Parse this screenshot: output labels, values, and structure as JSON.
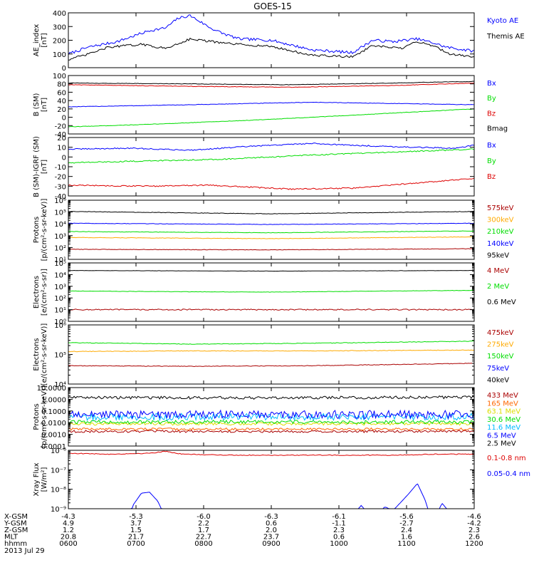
{
  "title": "GOES-15",
  "chart_data": [
    {
      "type": "line",
      "ylabel": "AE_index\n[nT]",
      "ylim": [
        0,
        400
      ],
      "scale": "linear",
      "ticks": [
        {
          "v": 0,
          "t": "0"
        },
        {
          "v": 100,
          "t": "100"
        },
        {
          "v": 200,
          "t": "200"
        },
        {
          "v": 300,
          "t": "300"
        },
        {
          "v": 400,
          "t": "400"
        }
      ],
      "series": [
        {
          "name": "Kyoto AE",
          "color": "#0000ff",
          "noise": 10,
          "x": [
            0,
            0.05,
            0.12,
            0.2,
            0.24,
            0.27,
            0.3,
            0.35,
            0.38,
            0.42,
            0.5,
            0.6,
            0.7,
            0.75,
            0.8,
            0.86,
            0.9,
            0.93,
            1.0
          ],
          "values": [
            100,
            150,
            190,
            270,
            290,
            360,
            380,
            290,
            250,
            210,
            200,
            130,
            110,
            200,
            190,
            210,
            180,
            150,
            120
          ]
        },
        {
          "name": "Themis AE",
          "color": "#000000",
          "noise": 8,
          "x": [
            0,
            0.04,
            0.1,
            0.18,
            0.24,
            0.3,
            0.38,
            0.42,
            0.5,
            0.6,
            0.7,
            0.75,
            0.82,
            0.86,
            0.9,
            0.94,
            1.0
          ],
          "values": [
            60,
            90,
            150,
            170,
            140,
            210,
            180,
            170,
            155,
            90,
            80,
            160,
            140,
            190,
            160,
            100,
            80
          ]
        }
      ]
    },
    {
      "type": "line",
      "ylabel": "B (SM)\n[nT]",
      "ylim": [
        -40,
        100
      ],
      "scale": "linear",
      "ticks": [
        {
          "v": -40,
          "t": "-40"
        },
        {
          "v": -20,
          "t": "-20"
        },
        {
          "v": 0,
          "t": "0"
        },
        {
          "v": 20,
          "t": "20"
        },
        {
          "v": 40,
          "t": "40"
        },
        {
          "v": 60,
          "t": "60"
        },
        {
          "v": 80,
          "t": "80"
        },
        {
          "v": 100,
          "t": "100"
        }
      ],
      "series": [
        {
          "name": "Bx",
          "color": "#0000ff",
          "noise": 0.6,
          "x": [
            0,
            0.3,
            0.6,
            1.0
          ],
          "values": [
            25,
            30,
            36,
            30
          ]
        },
        {
          "name": "By",
          "color": "#00dd00",
          "noise": 0.6,
          "x": [
            0,
            0.2,
            0.5,
            0.8,
            1.0
          ],
          "values": [
            -23,
            -17,
            -5,
            10,
            20
          ]
        },
        {
          "name": "Bz",
          "color": "#dd0000",
          "noise": 0.6,
          "x": [
            0,
            0.3,
            0.55,
            0.8,
            1.0
          ],
          "values": [
            78,
            74,
            72,
            76,
            82
          ]
        },
        {
          "name": "Bmag",
          "color": "#000000",
          "noise": 0.6,
          "x": [
            0,
            0.3,
            0.55,
            0.8,
            1.0
          ],
          "values": [
            82,
            80,
            78,
            82,
            86
          ]
        }
      ]
    },
    {
      "type": "line",
      "ylabel": "B (SM)-IGRF (SM)\n[nT]",
      "ylim": [
        -40,
        20
      ],
      "scale": "linear",
      "ticks": [
        {
          "v": -40,
          "t": "-40"
        },
        {
          "v": -30,
          "t": "-30"
        },
        {
          "v": -20,
          "t": "-20"
        },
        {
          "v": -10,
          "t": "-10"
        },
        {
          "v": 0,
          "t": "0"
        },
        {
          "v": 10,
          "t": "10"
        },
        {
          "v": 20,
          "t": "20"
        }
      ],
      "series": [
        {
          "name": "Bx",
          "color": "#0000ff",
          "noise": 0.6,
          "x": [
            0,
            0.15,
            0.3,
            0.45,
            0.6,
            0.7,
            0.85,
            0.95,
            1.0
          ],
          "values": [
            8,
            9,
            7,
            11,
            14,
            12,
            10,
            9,
            12
          ]
        },
        {
          "name": "By",
          "color": "#00dd00",
          "noise": 0.6,
          "x": [
            0,
            0.2,
            0.4,
            0.6,
            0.8,
            1.0
          ],
          "values": [
            -6,
            -4,
            -2,
            2,
            5,
            8
          ]
        },
        {
          "name": "Bz",
          "color": "#dd0000",
          "noise": 0.6,
          "x": [
            0,
            0.2,
            0.35,
            0.55,
            0.7,
            0.85,
            1.0
          ],
          "values": [
            -29,
            -30,
            -29,
            -33,
            -32,
            -27,
            -22
          ]
        }
      ]
    },
    {
      "type": "line",
      "ylabel": "Protons\n[p/(cm²-s-sr-keV)]",
      "ylim": [
        1,
        6
      ],
      "scale": "log",
      "ticks": [
        {
          "v": 1,
          "t": "10¹"
        },
        {
          "v": 2,
          "t": "10²"
        },
        {
          "v": 3,
          "t": "10³"
        },
        {
          "v": 4,
          "t": "10⁴"
        },
        {
          "v": 5,
          "t": "10⁵"
        },
        {
          "v": 6,
          "t": "10⁶"
        }
      ],
      "series": [
        {
          "name": "575keV",
          "color": "#aa0000",
          "noise": 0.02,
          "x": [
            0,
            0.5,
            1.0
          ],
          "values": [
            1.85,
            1.8,
            1.9
          ]
        },
        {
          "name": "300keV",
          "color": "#ffaa00",
          "noise": 0.02,
          "x": [
            0,
            0.5,
            1.0
          ],
          "values": [
            2.85,
            2.75,
            2.9
          ]
        },
        {
          "name": "210keV",
          "color": "#00dd00",
          "noise": 0.02,
          "x": [
            0,
            0.5,
            1.0
          ],
          "values": [
            3.35,
            3.25,
            3.4
          ]
        },
        {
          "name": "140keV",
          "color": "#0000ff",
          "noise": 0.02,
          "x": [
            0,
            0.5,
            1.0
          ],
          "values": [
            4.05,
            3.95,
            4.05
          ]
        },
        {
          "name": "95keV",
          "color": "#000000",
          "noise": 0.02,
          "x": [
            0,
            0.5,
            1.0
          ],
          "values": [
            5.05,
            4.85,
            5.05
          ]
        }
      ]
    },
    {
      "type": "line",
      "ylabel": "Electrons\n[e/(cm²-s-sr)]",
      "ylim": [
        0,
        5
      ],
      "scale": "log",
      "ticks": [
        {
          "v": 0,
          "t": "10⁰"
        },
        {
          "v": 1,
          "t": "10¹"
        },
        {
          "v": 2,
          "t": "10²"
        },
        {
          "v": 3,
          "t": "10³"
        },
        {
          "v": 4,
          "t": "10⁴"
        },
        {
          "v": 5,
          "t": "10⁵"
        }
      ],
      "series": [
        {
          "name": "4 MeV",
          "color": "#aa0000",
          "noise": 0.05,
          "x": [
            0,
            0.5,
            1.0
          ],
          "values": [
            1.0,
            1.0,
            1.0
          ]
        },
        {
          "name": "2 MeV",
          "color": "#00dd00",
          "noise": 0.015,
          "x": [
            0,
            0.2,
            0.5,
            0.8,
            1.0
          ],
          "values": [
            2.6,
            2.55,
            2.5,
            2.6,
            2.65
          ]
        },
        {
          "name": "0.6 MeV",
          "color": "#000000",
          "noise": 0.01,
          "x": [
            0,
            0.5,
            1.0
          ],
          "values": [
            4.35,
            4.3,
            4.35
          ]
        }
      ]
    },
    {
      "type": "line",
      "ylabel": "Electrons\n[e/(cm²-s-sr-keV)]",
      "ylim": [
        4,
        6
      ],
      "scale": "log",
      "ticks": [
        {
          "v": 4,
          "t": "10⁴"
        },
        {
          "v": 5,
          "t": "10⁵"
        },
        {
          "v": 6,
          "t": "10⁶"
        }
      ],
      "series": [
        {
          "name": "475keV",
          "color": "#aa0000",
          "noise": 0.01,
          "x": [
            0,
            0.3,
            0.6,
            1.0
          ],
          "values": [
            4.62,
            4.6,
            4.62,
            4.7
          ]
        },
        {
          "name": "275keV",
          "color": "#ffaa00",
          "noise": 0.01,
          "x": [
            0,
            0.3,
            0.6,
            1.0
          ],
          "values": [
            5.1,
            5.12,
            5.12,
            5.15
          ]
        },
        {
          "name": "150keV",
          "color": "#00dd00",
          "noise": 0.01,
          "x": [
            0,
            0.3,
            0.6,
            1.0
          ],
          "values": [
            5.4,
            5.35,
            5.38,
            5.45
          ]
        },
        {
          "name": "75keV",
          "color": "#0000ff",
          "noise": 0.01,
          "x": [
            0,
            0.5,
            1.0
          ],
          "values": [
            6.05,
            6.05,
            6.05
          ]
        },
        {
          "name": "40keV",
          "color": "#000000",
          "noise": 0.01,
          "x": [
            0,
            0.5,
            1.0
          ],
          "values": [
            6.1,
            6.1,
            6.1
          ]
        }
      ]
    },
    {
      "type": "line",
      "ylabel": "Protons\n[p/(cm²-s-sr-keV)]",
      "ylim": [
        -4,
        1
      ],
      "scale": "log",
      "ticks": [
        {
          "v": -4,
          "t": "0.0001"
        },
        {
          "v": -3,
          "t": "0.0010"
        },
        {
          "v": -2,
          "t": "0.0100"
        },
        {
          "v": -1,
          "t": "0.1000"
        },
        {
          "v": 0,
          "t": "1.0000"
        },
        {
          "v": 1,
          "t": "10.0000"
        }
      ],
      "series": [
        {
          "name": "433 MeV",
          "color": "#aa0000",
          "noise": 0.1,
          "x": [
            0,
            0.5,
            1.0
          ],
          "values": [
            -2.75,
            -2.75,
            -2.75
          ]
        },
        {
          "name": "165 MeV",
          "color": "#ff6600",
          "noise": 0.1,
          "x": [
            0,
            0.5,
            1.0
          ],
          "values": [
            -2.55,
            -2.55,
            -2.55
          ]
        },
        {
          "name": "63.1 MeV",
          "color": "#dddd00",
          "noise": 0.12,
          "x": [
            0,
            0.5,
            1.0
          ],
          "values": [
            -2.1,
            -2.1,
            -2.1
          ]
        },
        {
          "name": "30.6 MeV",
          "color": "#00dd00",
          "noise": 0.15,
          "x": [
            0,
            0.5,
            1.0
          ],
          "values": [
            -1.95,
            -1.95,
            -1.95
          ]
        },
        {
          "name": "11.6 MeV",
          "color": "#00bbff",
          "noise": 0.3,
          "x": [
            0,
            0.5,
            1.0
          ],
          "values": [
            -1.5,
            -1.5,
            -1.5
          ]
        },
        {
          "name": "6.5 MeV",
          "color": "#0000ff",
          "noise": 0.35,
          "x": [
            0,
            0.5,
            1.0
          ],
          "values": [
            -1.3,
            -1.3,
            -1.3
          ]
        },
        {
          "name": "2.5 MeV",
          "color": "#000000",
          "noise": 0.12,
          "x": [
            0,
            0.5,
            1.0
          ],
          "values": [
            0.15,
            0.12,
            0.18
          ]
        }
      ]
    },
    {
      "type": "line",
      "ylabel": "Xray Flux\n[W/m²]",
      "ylim": [
        -9,
        -6
      ],
      "scale": "log",
      "ticks": [
        {
          "v": -9,
          "t": "10⁻⁹"
        },
        {
          "v": -8,
          "t": "10⁻⁸"
        },
        {
          "v": -7,
          "t": "10⁻⁷"
        },
        {
          "v": -6,
          "t": "10⁻⁶"
        }
      ],
      "series": [
        {
          "name": "0.1-0.8 nm",
          "color": "#dd0000",
          "noise": 0.02,
          "x": [
            0,
            0.1,
            0.2,
            0.24,
            0.28,
            0.4,
            0.6,
            0.8,
            0.9,
            1.0
          ],
          "values": [
            -6.15,
            -6.2,
            -6.15,
            -6.05,
            -6.2,
            -6.25,
            -6.25,
            -6.25,
            -6.2,
            -6.2
          ]
        },
        {
          "name": "0.05-0.4 nm",
          "color": "#0000ff",
          "noise": 0,
          "clip": true,
          "x": [
            0,
            0.14,
            0.16,
            0.18,
            0.2,
            0.22,
            0.24,
            0.26,
            0.55,
            0.56,
            0.57,
            0.7,
            0.72,
            0.75,
            0.78,
            0.8,
            0.84,
            0.86,
            0.88,
            0.9,
            0.92,
            0.94,
            1.0
          ],
          "values": [
            -10,
            -10,
            -8.8,
            -8.2,
            -8.15,
            -8.6,
            -9.5,
            -10,
            -10,
            -9.0,
            -10,
            -10,
            -8.8,
            -9.5,
            -8.9,
            -9.1,
            -8.2,
            -7.7,
            -8.6,
            -10,
            -8.7,
            -9.2,
            -10
          ]
        }
      ]
    }
  ],
  "xaxis": {
    "rows": [
      {
        "label": "X-GSM",
        "values": [
          "-4.3",
          "-5.3",
          "-6.0",
          "-6.3",
          "-6.1",
          "-5.6",
          "-4.6"
        ]
      },
      {
        "label": "Y-GSM",
        "values": [
          "4.9",
          "3.7",
          "2.2",
          "0.6",
          "-1.1",
          "-2.7",
          "-4.2"
        ]
      },
      {
        "label": "Z-GSM",
        "values": [
          "1.2",
          "1.5",
          "1.7",
          "2.0",
          "2.3",
          "2.4",
          "2.3"
        ]
      },
      {
        "label": "MLT",
        "values": [
          "20.8",
          "21.7",
          "22.7",
          "23.7",
          "0.6",
          "1.6",
          "2.6"
        ]
      },
      {
        "label": "hhmm",
        "values": [
          "0600",
          "0700",
          "0800",
          "0900",
          "1000",
          "1100",
          "1200"
        ]
      }
    ],
    "date": "2013 Jul 29"
  }
}
